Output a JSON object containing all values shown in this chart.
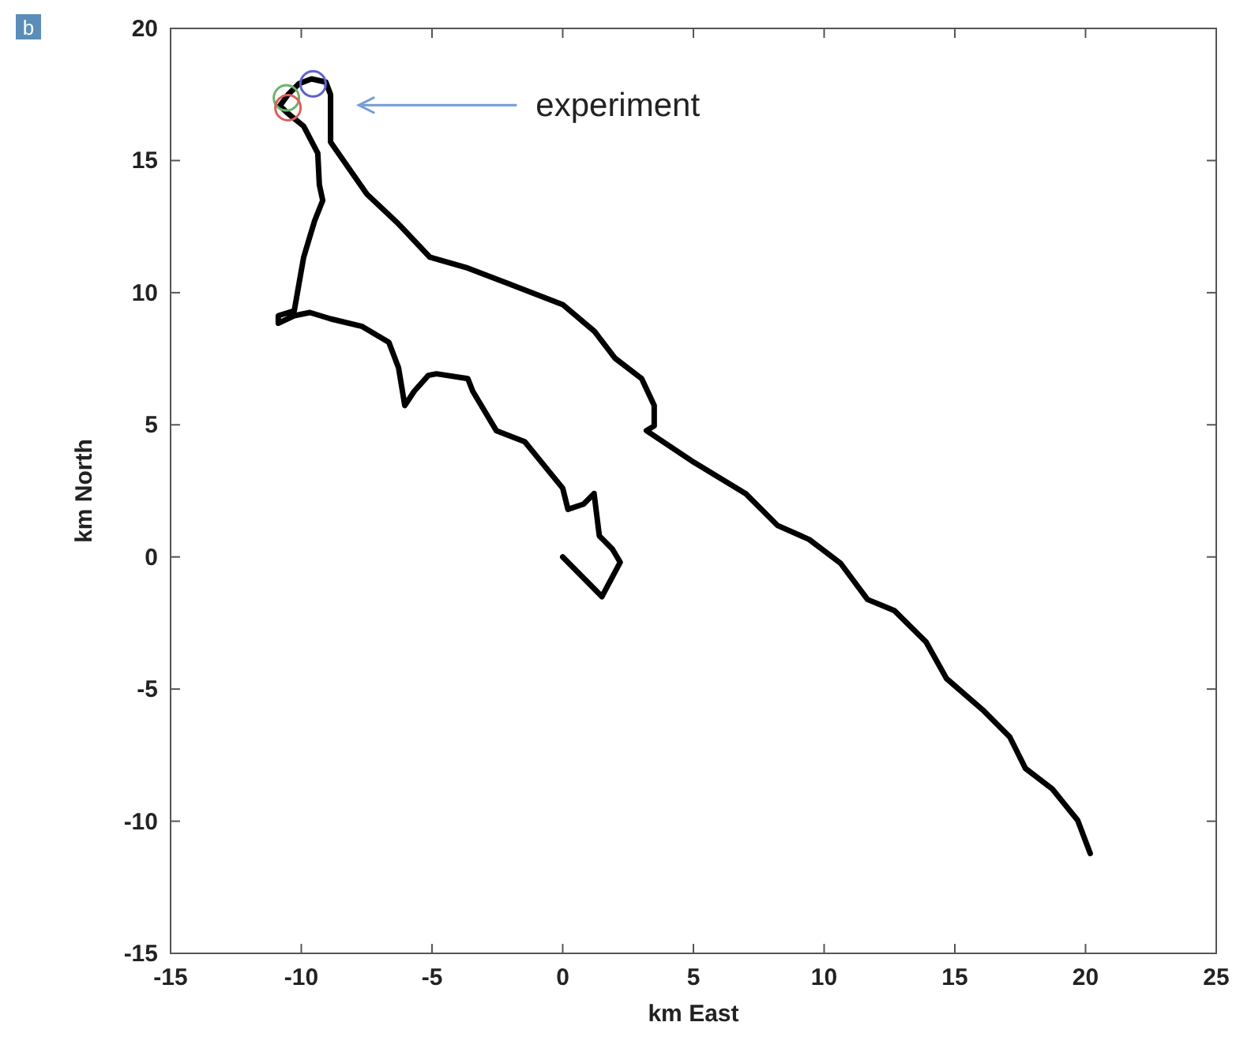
{
  "chart_data": {
    "type": "line",
    "xlabel": "km East",
    "ylabel": "km North",
    "xlim": [
      -15,
      25
    ],
    "ylim": [
      -15,
      20
    ],
    "xticks": [
      -15,
      -10,
      -5,
      0,
      5,
      10,
      15,
      20,
      25
    ],
    "yticks": [
      -15,
      -10,
      -5,
      0,
      5,
      10,
      15,
      20
    ],
    "grid": false,
    "marker": "none",
    "line_style": "solid",
    "annotations": [
      "b",
      "experiment"
    ],
    "series": [
      {
        "color": "#000000",
        "x": [
          0,
          1.5,
          2.2,
          1.9,
          1.4,
          1.3,
          1.2,
          0.8,
          0.2,
          0,
          -1.45,
          -2.54,
          -3.44,
          -3.63,
          -4.83,
          -5.14,
          -5.68,
          -6.04,
          -6.28,
          -6.65,
          -7.67,
          -8.88,
          -9.67,
          -10.27,
          -10.88,
          -10.88,
          -10.27,
          -10.09,
          -9.91,
          -9.49,
          -9.18,
          -9.31,
          -9.37,
          -9.91,
          -10.51,
          -10.82,
          -10.51,
          -10.09,
          -9.61,
          -9.06,
          -8.88,
          -8.88,
          -8.46,
          -7.49,
          -6.28,
          -5.08,
          -3.63,
          -2.05,
          0,
          1.21,
          2.0,
          3.02,
          3.5,
          3.5,
          3.2,
          5.02,
          7.01,
          8.22,
          9.43,
          10.63,
          11.66,
          12.69,
          13.9,
          14.68,
          16.07,
          17.1,
          17.7,
          18.73,
          19.7,
          20.18
        ],
        "values": [
          0,
          -1.5,
          -0.2,
          0.3,
          0.8,
          1.6,
          2.4,
          2.0,
          1.8,
          2.6,
          4.36,
          4.78,
          6.27,
          6.75,
          6.93,
          6.87,
          6.27,
          5.73,
          7.16,
          8.12,
          8.72,
          9.01,
          9.25,
          9.13,
          8.84,
          9.13,
          9.31,
          10.33,
          11.34,
          12.72,
          13.49,
          14.09,
          15.28,
          16.3,
          16.78,
          17.07,
          17.49,
          17.91,
          18.09,
          17.97,
          17.49,
          15.7,
          15.1,
          13.73,
          12.6,
          11.34,
          10.93,
          10.33,
          9.55,
          8.54,
          7.52,
          6.75,
          5.73,
          4.96,
          4.78,
          3.58,
          2.39,
          1.19,
          0.66,
          -0.24,
          -1.61,
          -2.03,
          -3.22,
          -4.6,
          -5.79,
          -6.81,
          -8.0,
          -8.78,
          -9.97,
          -11.22
        ]
      },
      {
        "type": "scatter",
        "marker": "circle",
        "color": "#6ab46a",
        "x": [
          -10.57
        ],
        "values": [
          17.37
        ]
      },
      {
        "type": "scatter",
        "marker": "circle",
        "color": "#d9605a",
        "x": [
          -10.51
        ],
        "values": [
          17.0
        ]
      },
      {
        "type": "scatter",
        "marker": "circle",
        "color": "#6060d0",
        "x": [
          -9.55
        ],
        "values": [
          17.9
        ]
      }
    ]
  }
}
